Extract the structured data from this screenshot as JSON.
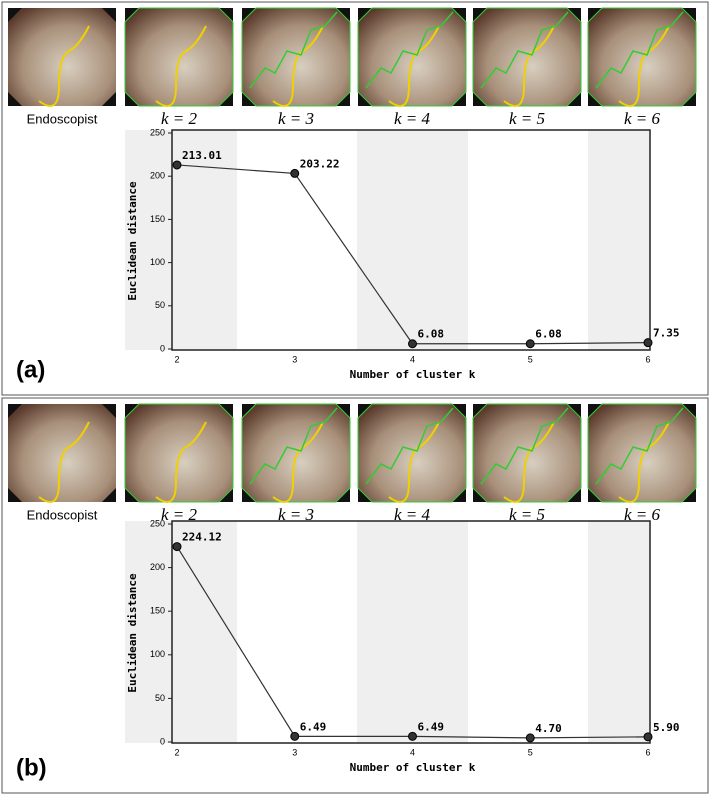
{
  "chart_data": [
    {
      "type": "line",
      "panel_label": "(a)",
      "image_labels": [
        "Endoscopist",
        "k = 2",
        "k = 3",
        "k = 4",
        "k = 5",
        "k = 6"
      ],
      "x": [
        2,
        3,
        4,
        5,
        6
      ],
      "values": [
        213.01,
        203.22,
        6.08,
        6.08,
        7.35
      ],
      "value_labels": [
        "213.01",
        "203.22",
        "6.08",
        "6.08",
        "7.35"
      ],
      "xlim": [
        2,
        6
      ],
      "ylim": [
        0,
        250
      ],
      "xticks": [
        2,
        3,
        4,
        5,
        6
      ],
      "yticks": [
        0,
        50,
        100,
        150,
        200,
        250
      ],
      "x_label": "Number of cluster k",
      "y_label": "Euclidean distance",
      "color": "#333333"
    },
    {
      "type": "line",
      "panel_label": "(b)",
      "image_labels": [
        "Endoscopist",
        "k = 2",
        "k = 3",
        "k = 4",
        "k = 5",
        "k = 6"
      ],
      "x": [
        2,
        3,
        4,
        5,
        6
      ],
      "values": [
        224.12,
        6.49,
        6.49,
        4.7,
        5.9
      ],
      "value_labels": [
        "224.12",
        "6.49",
        "6.49",
        "4.70",
        "5.90"
      ],
      "xlim": [
        2,
        6
      ],
      "ylim": [
        0,
        250
      ],
      "xticks": [
        2,
        3,
        4,
        5,
        6
      ],
      "yticks": [
        0,
        50,
        100,
        150,
        200,
        250
      ],
      "x_label": "Number of cluster k",
      "y_label": "Euclidean distance",
      "color": "#333333"
    }
  ]
}
